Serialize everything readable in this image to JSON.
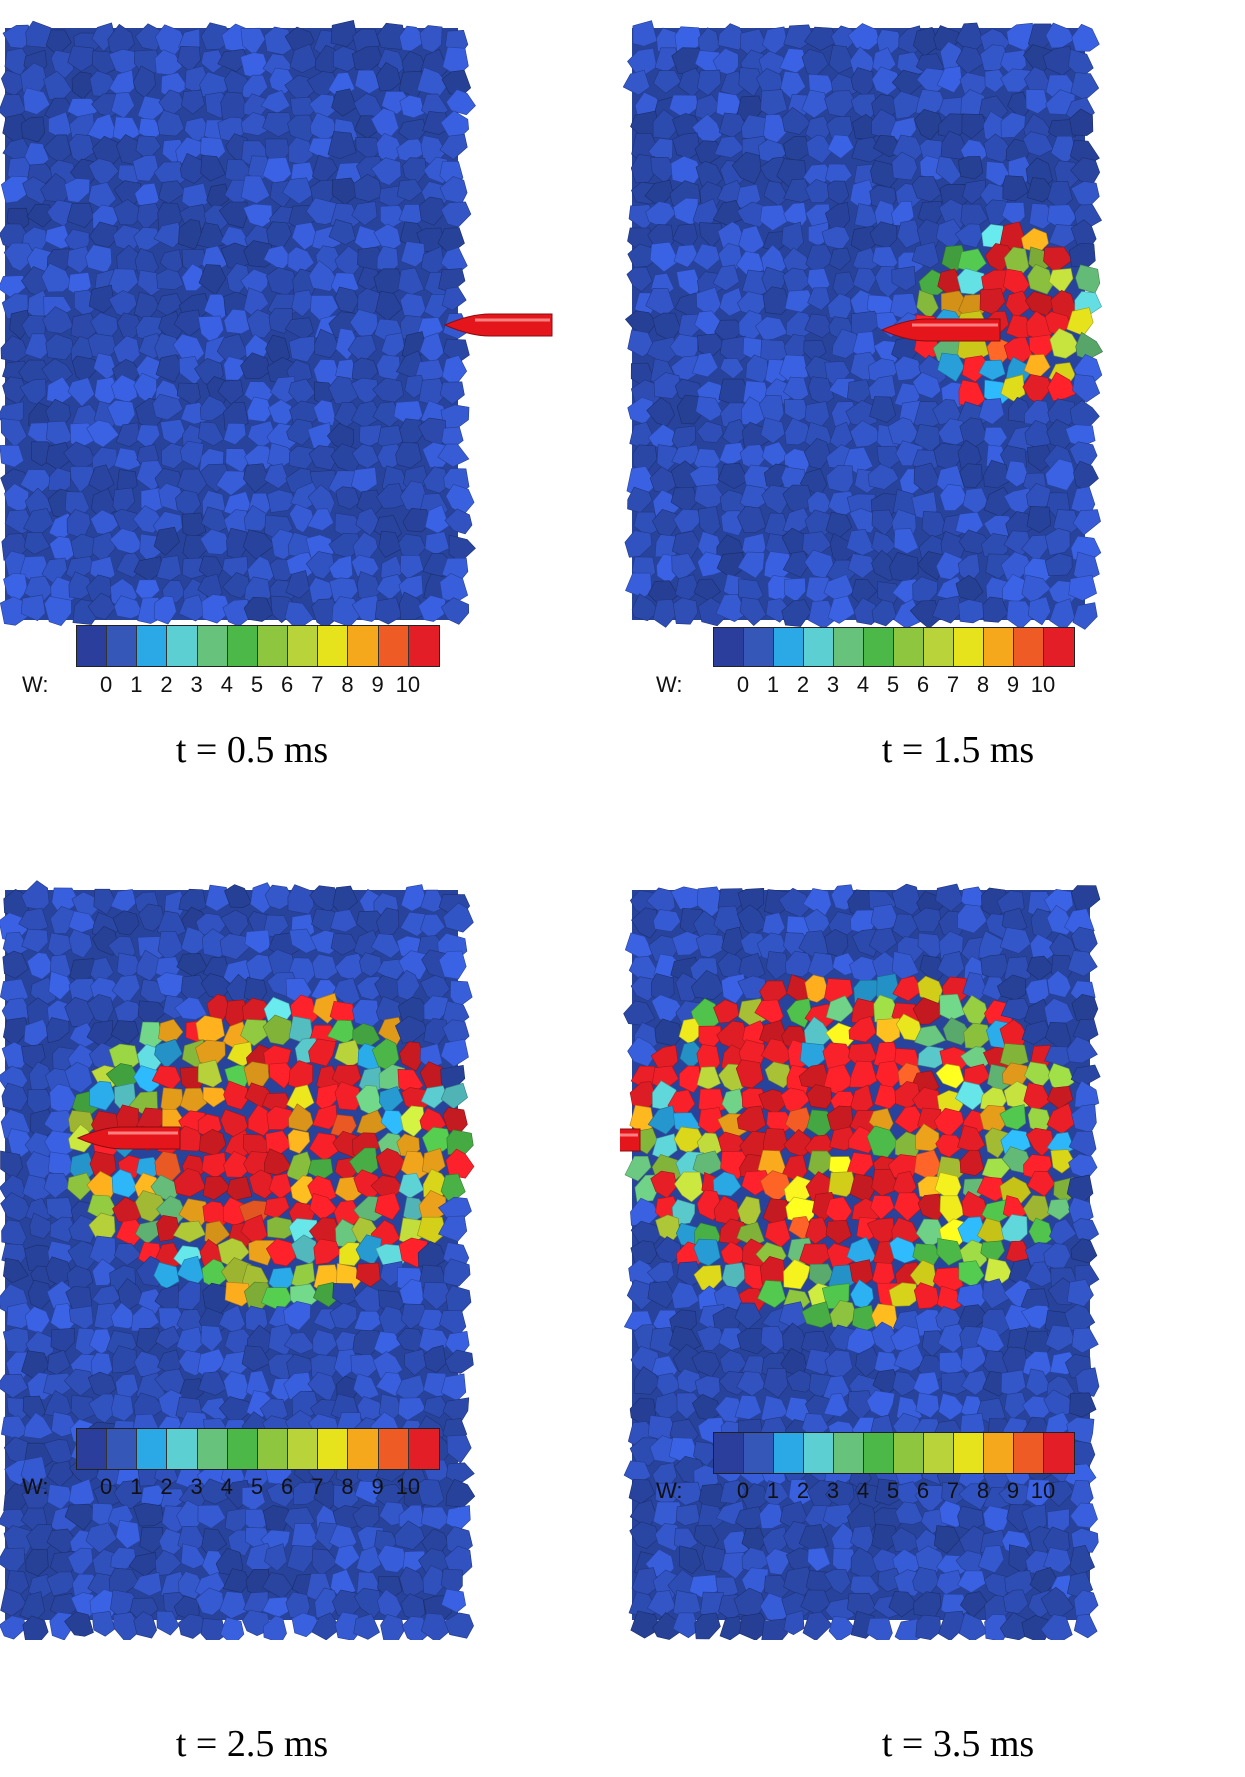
{
  "colors": {
    "particle_base": "#2f4fb8",
    "projectile": "#e4161c",
    "scale": [
      "#2c3e9c",
      "#3557b8",
      "#2aa9e6",
      "#5ccfd2",
      "#67c27c",
      "#4cb848",
      "#8fc63f",
      "#b9d43a",
      "#e6e21c",
      "#f5a81c",
      "#ef5b24",
      "#e41e26"
    ]
  },
  "legend": {
    "label": "W:",
    "ticks": [
      "0",
      "1",
      "2",
      "3",
      "4",
      "5",
      "6",
      "7",
      "8",
      "9",
      "10"
    ]
  },
  "panels": [
    {
      "caption": "t = 0.5 ms",
      "damage_level": 0.0
    },
    {
      "caption": "t = 1.5 ms",
      "damage_level": 0.2
    },
    {
      "caption": "t = 2.5 ms",
      "damage_level": 0.55
    },
    {
      "caption": "t = 3.5 ms",
      "damage_level": 0.8
    }
  ]
}
